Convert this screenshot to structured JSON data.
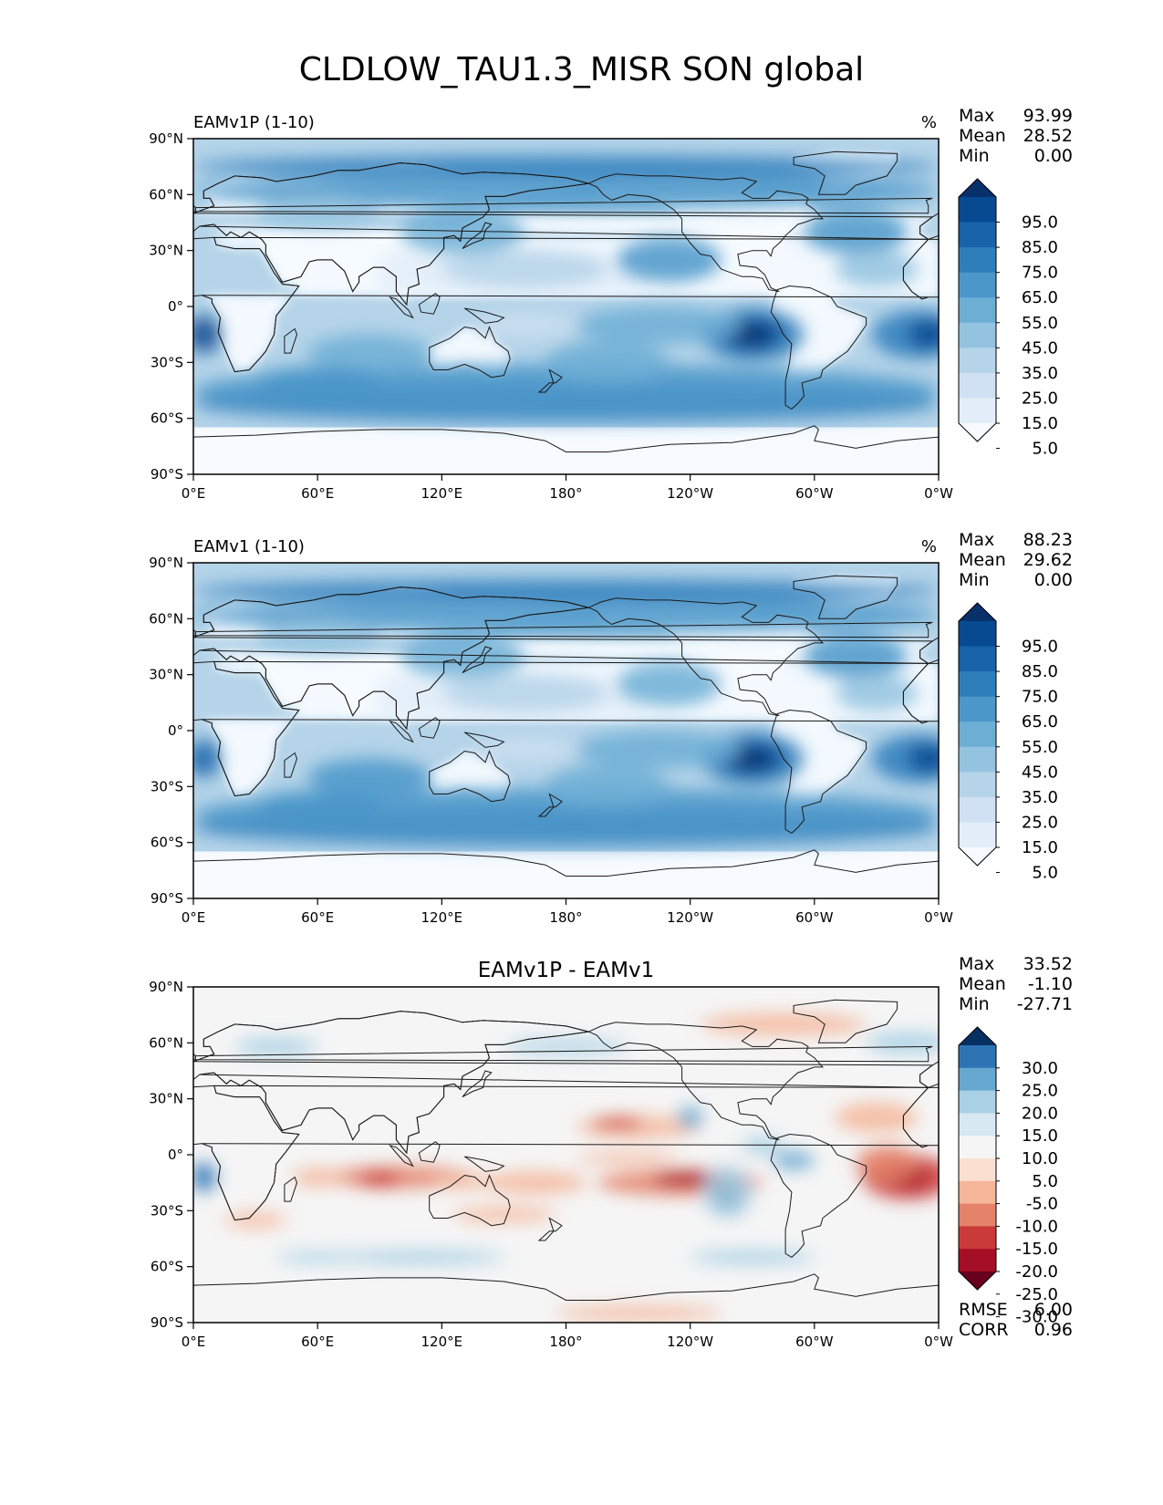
{
  "figure": {
    "title": "CLDLOW_TAU1.3_MISR SON global"
  },
  "panels": [
    {
      "id": "test",
      "left_title": "EAMv1P (1-10)",
      "center_title": "",
      "units": "%",
      "stats": [
        {
          "label": "Max",
          "value": "93.99"
        },
        {
          "label": "Mean",
          "value": "28.52"
        },
        {
          "label": "Min",
          "value": "0.00"
        }
      ],
      "colorbar": {
        "colors": [
          "#f7fbff",
          "#e3eef9",
          "#cfe1f2",
          "#b5d4e9",
          "#93c3df",
          "#6daed5",
          "#4b97c9",
          "#2f7ebc",
          "#1764ab",
          "#084a91",
          "#08306b"
        ],
        "labels": [
          "95.0",
          "85.0",
          "75.0",
          "65.0",
          "55.0",
          "45.0",
          "35.0",
          "25.0",
          "15.0",
          "5.0"
        ]
      },
      "extra_stats": []
    },
    {
      "id": "reference",
      "left_title": "EAMv1 (1-10)",
      "center_title": "",
      "units": "%",
      "stats": [
        {
          "label": "Max",
          "value": "88.23"
        },
        {
          "label": "Mean",
          "value": "29.62"
        },
        {
          "label": "Min",
          "value": "0.00"
        }
      ],
      "colorbar": {
        "colors": [
          "#f7fbff",
          "#e3eef9",
          "#cfe1f2",
          "#b5d4e9",
          "#93c3df",
          "#6daed5",
          "#4b97c9",
          "#2f7ebc",
          "#1764ab",
          "#084a91",
          "#08306b"
        ],
        "labels": [
          "95.0",
          "85.0",
          "75.0",
          "65.0",
          "55.0",
          "45.0",
          "35.0",
          "25.0",
          "15.0",
          "5.0"
        ]
      },
      "extra_stats": []
    },
    {
      "id": "diff",
      "left_title": "",
      "center_title": "EAMv1P - EAMv1",
      "units": "",
      "stats": [
        {
          "label": "Max",
          "value": "33.52"
        },
        {
          "label": "Mean",
          "value": "-1.10"
        },
        {
          "label": "Min",
          "value": "-27.71"
        }
      ],
      "colorbar": {
        "colors": [
          "#67001f",
          "#a50f26",
          "#cb3a3a",
          "#e4826a",
          "#f5b69a",
          "#fbe0d1",
          "#f5f5f5",
          "#d7e8f2",
          "#a9d0e5",
          "#66a8d0",
          "#2d74b5",
          "#053061"
        ],
        "labels": [
          "30.0",
          "25.0",
          "20.0",
          "15.0",
          "10.0",
          "5.0",
          "-5.0",
          "-10.0",
          "-15.0",
          "-20.0",
          "-25.0",
          "-30.0"
        ]
      },
      "extra_stats": [
        {
          "label": "RMSE",
          "value": "6.00"
        },
        {
          "label": "CORR",
          "value": "0.96"
        }
      ]
    }
  ],
  "axes": {
    "lat_ticks": [
      "90°N",
      "60°N",
      "30°N",
      "0°",
      "30°S",
      "60°S",
      "90°S"
    ],
    "lon_ticks": [
      "0°E",
      "60°E",
      "120°E",
      "180°",
      "120°W",
      "60°W",
      "0°W"
    ]
  }
}
